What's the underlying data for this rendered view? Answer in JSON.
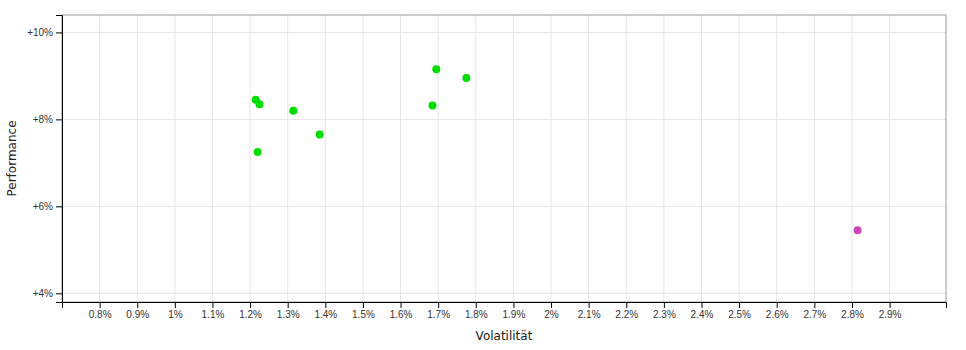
{
  "chart_data": {
    "type": "scatter",
    "xlabel": "Volatilität",
    "ylabel": "Performance",
    "xlim": [
      0.007,
      0.0305
    ],
    "ylim": [
      0.038,
      0.104
    ],
    "xticks": [
      {
        "value": 0.008,
        "label": "0.8%"
      },
      {
        "value": 0.009,
        "label": "0.9%"
      },
      {
        "value": 0.01,
        "label": "1%"
      },
      {
        "value": 0.011,
        "label": "1.1%"
      },
      {
        "value": 0.012,
        "label": "1.2%"
      },
      {
        "value": 0.013,
        "label": "1.3%"
      },
      {
        "value": 0.014,
        "label": "1.4%"
      },
      {
        "value": 0.015,
        "label": "1.5%"
      },
      {
        "value": 0.016,
        "label": "1.6%"
      },
      {
        "value": 0.017,
        "label": "1.7%"
      },
      {
        "value": 0.018,
        "label": "1.8%"
      },
      {
        "value": 0.019,
        "label": "1.9%"
      },
      {
        "value": 0.02,
        "label": "2%"
      },
      {
        "value": 0.021,
        "label": "2.1%"
      },
      {
        "value": 0.022,
        "label": "2.2%"
      },
      {
        "value": 0.023,
        "label": "2.3%"
      },
      {
        "value": 0.024,
        "label": "2.4%"
      },
      {
        "value": 0.025,
        "label": "2.5%"
      },
      {
        "value": 0.026,
        "label": "2.6%"
      },
      {
        "value": 0.027,
        "label": "2.7%"
      },
      {
        "value": 0.028,
        "label": "2.8%"
      },
      {
        "value": 0.029,
        "label": "2.9%"
      }
    ],
    "yticks": [
      {
        "value": 0.04,
        "label": "+4%"
      },
      {
        "value": 0.06,
        "label": "+6%"
      },
      {
        "value": 0.08,
        "label": "+8%"
      },
      {
        "value": 0.1,
        "label": "+10%"
      }
    ],
    "grid": true,
    "series": [
      {
        "color": "#00dd00",
        "x": [
          0.01215,
          0.01225,
          0.0122,
          0.01315,
          0.01385,
          0.01685,
          0.01695,
          0.01775
        ],
        "values": [
          0.0845,
          0.0835,
          0.0725,
          0.082,
          0.0765,
          0.0832,
          0.0915,
          0.0895
        ]
      },
      {
        "color": "#cc44bb",
        "x": [
          0.02815
        ],
        "values": [
          0.0545
        ]
      }
    ]
  }
}
